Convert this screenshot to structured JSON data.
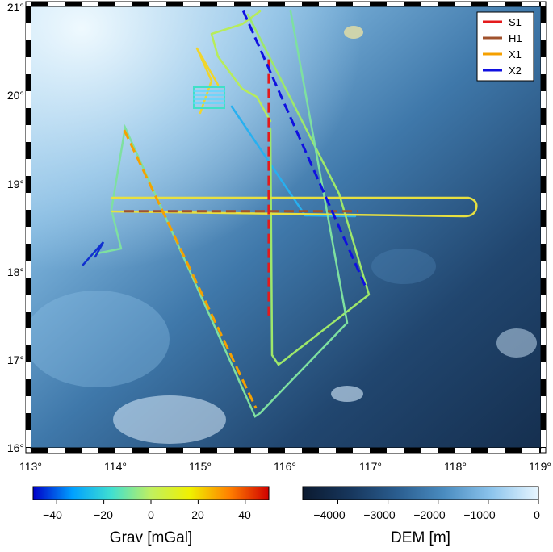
{
  "map": {
    "x_ticks": [
      "113°",
      "114°",
      "115°",
      "116°",
      "117°",
      "118°",
      "119°"
    ],
    "y_ticks": [
      "16°",
      "17°",
      "18°",
      "19°",
      "20°",
      "21°"
    ],
    "x_range": [
      113,
      119
    ],
    "y_range": [
      16,
      21
    ]
  },
  "legend": {
    "placement": "top-right",
    "items": [
      {
        "label": "S1",
        "color": "#e41a1c"
      },
      {
        "label": "H1",
        "color": "#a0522d"
      },
      {
        "label": "X1",
        "color": "#f5a000"
      },
      {
        "label": "X2",
        "color": "#1010e0"
      }
    ]
  },
  "survey_lines": {
    "S1": [
      [
        115.8,
        20.4
      ],
      [
        115.8,
        17.5
      ]
    ],
    "H1": [
      [
        114.1,
        18.68
      ],
      [
        116.85,
        18.68
      ]
    ],
    "X1": [
      [
        114.1,
        19.6
      ],
      [
        115.65,
        16.45
      ]
    ],
    "X2": [
      [
        115.5,
        20.95
      ],
      [
        116.95,
        17.8
      ]
    ]
  },
  "colorbars": {
    "grav": {
      "title": "Grav [mGal]",
      "ticks": [
        "−40",
        "−20",
        "0",
        "20",
        "40"
      ],
      "tick_values": [
        -40,
        -20,
        0,
        20,
        40
      ],
      "range": [
        -50,
        50
      ],
      "colors": [
        "#0000c8",
        "#00a0ff",
        "#40e0d0",
        "#c0f060",
        "#f0f000",
        "#ff8000",
        "#d00000"
      ]
    },
    "dem": {
      "title": "DEM [m]",
      "ticks": [
        "−4000",
        "−3000",
        "−2000",
        "−1000",
        "0"
      ],
      "tick_values": [
        -4000,
        -3000,
        -2000,
        -1000,
        0
      ],
      "range": [
        -4700,
        0
      ],
      "colors": [
        "#0b1a30",
        "#17365c",
        "#2a5d8f",
        "#4a8cc0",
        "#8cc4ec",
        "#e8f6ff"
      ]
    }
  }
}
